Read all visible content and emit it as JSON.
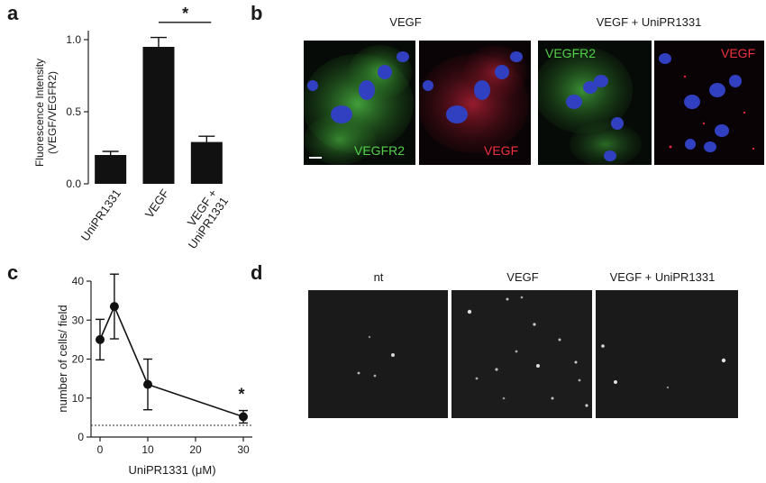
{
  "panels": {
    "a": {
      "letter": "a"
    },
    "b": {
      "letter": "b",
      "caption_left": "VEGF",
      "caption_right": "VEGF + UniPR1331",
      "label_green": "VEGFR2",
      "label_red": "VEGF",
      "colors": {
        "green": "#3fbf3a",
        "red": "#e0283c",
        "nuclei": "#2f3fc8"
      }
    },
    "c": {
      "letter": "c"
    },
    "d": {
      "letter": "d",
      "captions": [
        "nt",
        "VEGF",
        "VEGF + UniPR1331"
      ]
    }
  },
  "chart_data": [
    {
      "type": "bar",
      "panel": "a",
      "categories": [
        "UniPR1331",
        "VEGF",
        "VEGF + UniPR1331"
      ],
      "values": [
        0.2,
        0.95,
        0.29
      ],
      "errors": [
        0.025,
        0.065,
        0.04
      ],
      "ylabel_line1": "Fluorescence Intensity",
      "ylabel_line2": "(VEGF/VEGFR2)",
      "xlabel": "",
      "ylim": [
        0,
        1.0
      ],
      "yticks": [
        "0.0",
        "0.5",
        "1.0"
      ],
      "bar_color": "#111111",
      "significance": {
        "marker": "*",
        "between": [
          "VEGF",
          "VEGF + UniPR1331"
        ]
      },
      "grid": false
    },
    {
      "type": "line",
      "panel": "c",
      "x": [
        0,
        3,
        10,
        30
      ],
      "y": [
        25,
        33.5,
        13.5,
        5.2
      ],
      "errors": [
        5.2,
        8.3,
        6.5,
        1.6
      ],
      "xlabel": "UniPR1331 (μM)",
      "ylabel": "number of cells/ field",
      "xlim": [
        0,
        30
      ],
      "ylim": [
        0,
        40
      ],
      "xticks": [
        "0",
        "10",
        "20",
        "30"
      ],
      "yticks": [
        "0",
        "10",
        "20",
        "30",
        "40"
      ],
      "baseline": 3,
      "significance": {
        "marker": "*",
        "at_x": 30
      },
      "grid": false
    }
  ]
}
